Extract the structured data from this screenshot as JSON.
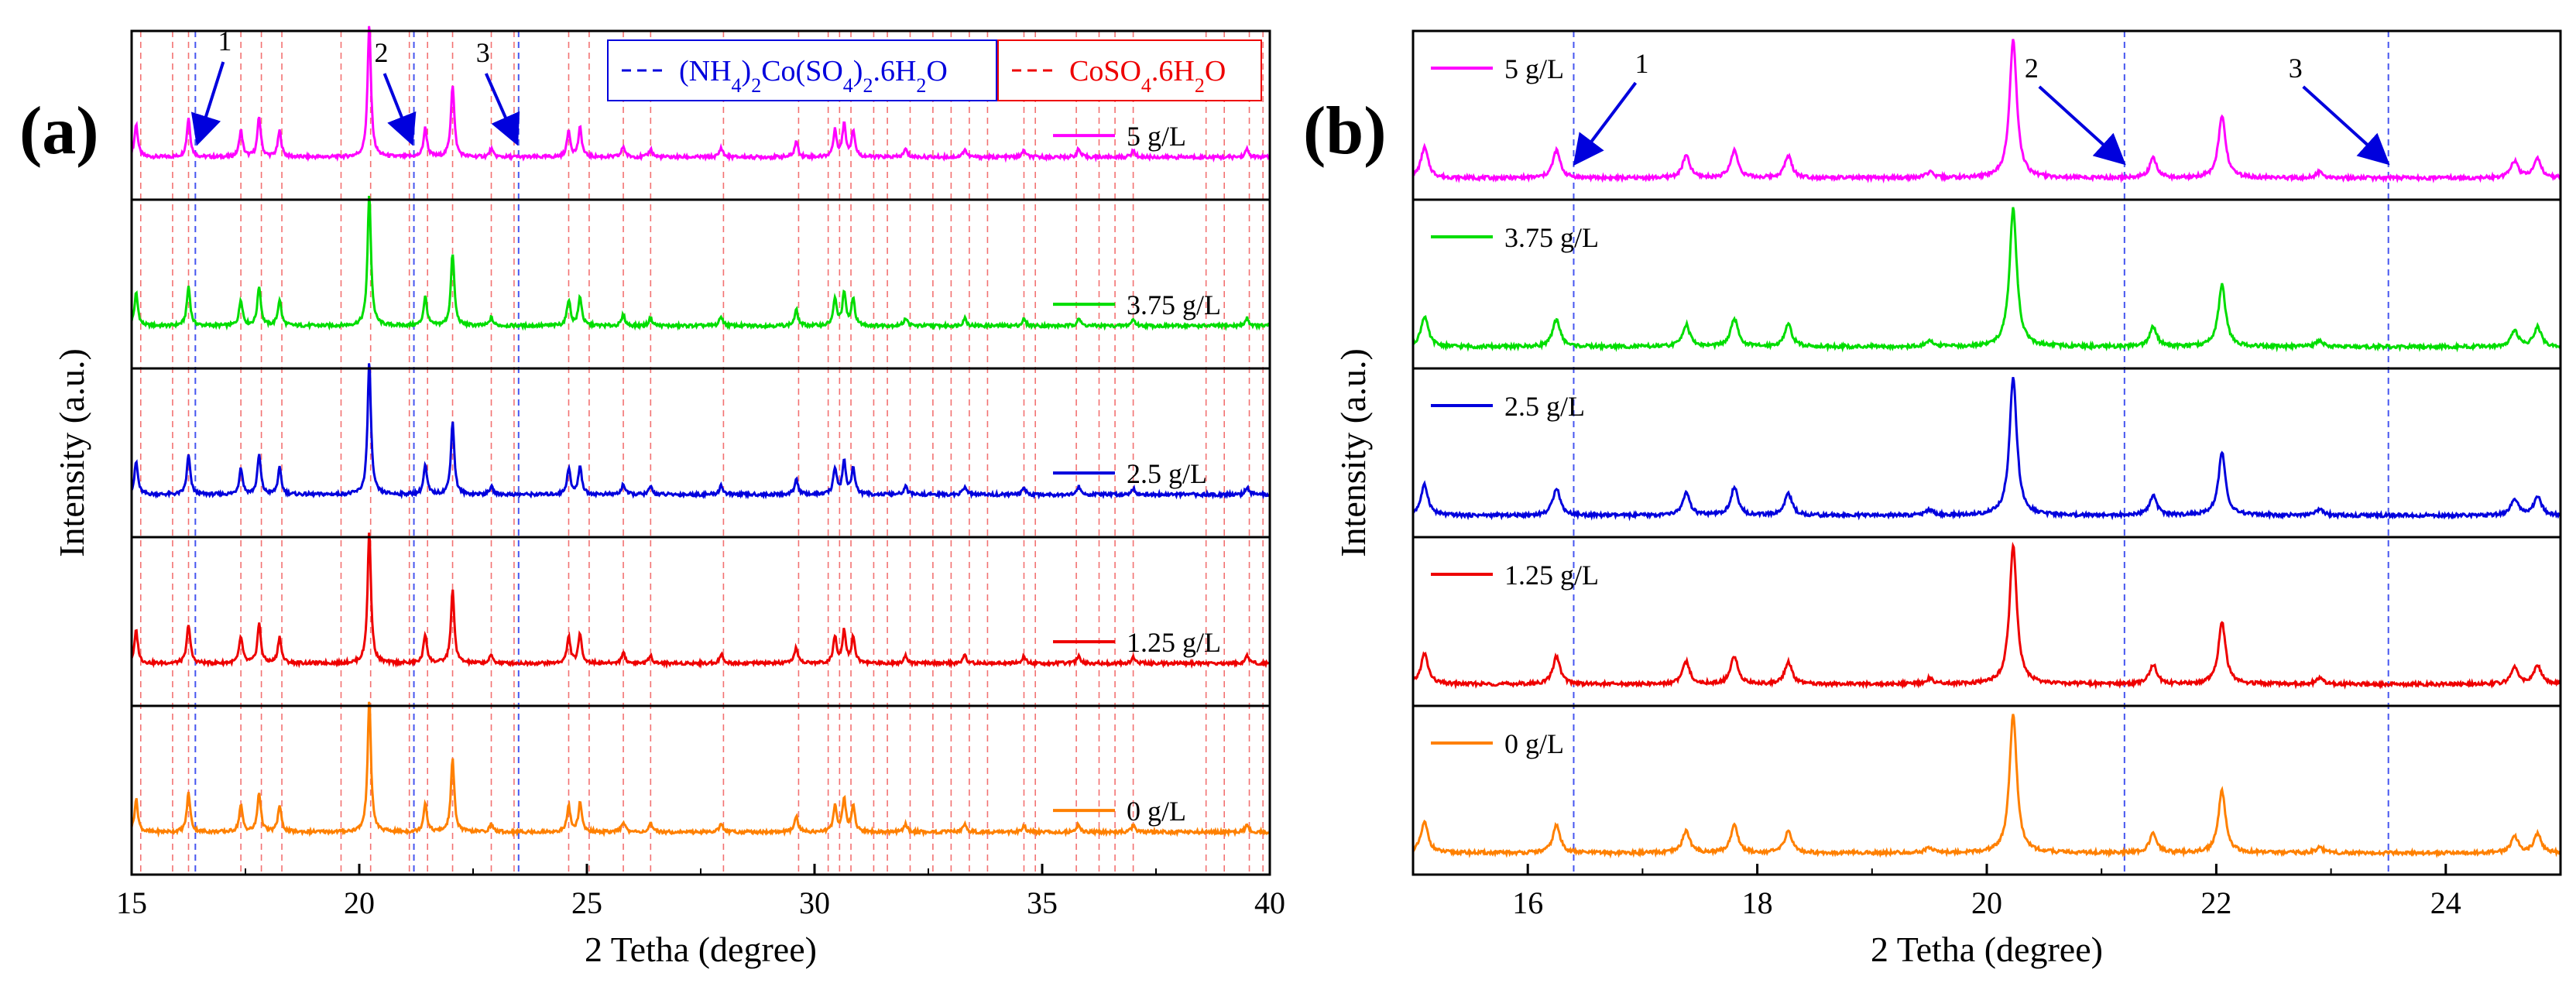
{
  "chart_data": [
    {
      "type": "line",
      "panel_label": "(a)",
      "xlabel": "2 Tetha (degree)",
      "ylabel": "Intensity (a.u.)",
      "xlim": [
        15,
        40
      ],
      "xticks": [
        15,
        20,
        25,
        30,
        35,
        40
      ],
      "stacked": true,
      "series": [
        {
          "name": "5 g/L",
          "color": "#FF00FF"
        },
        {
          "name": "3.75 g/L",
          "color": "#00DD00"
        },
        {
          "name": "2.5 g/L",
          "color": "#0000DD"
        },
        {
          "name": "1.25 g/L",
          "color": "#EE0000"
        },
        {
          "name": "0 g/L",
          "color": "#FF8000"
        }
      ],
      "peaks_2theta": [
        15.1,
        16.25,
        17.4,
        17.8,
        18.25,
        20.22,
        21.45,
        22.05,
        22.9,
        24.6,
        24.85,
        25.8,
        26.4,
        27.95,
        29.6,
        30.45,
        30.65,
        30.85,
        32.0,
        33.3,
        34.6,
        35.8,
        37.0,
        39.5
      ],
      "peak_heights": [
        0.25,
        0.3,
        0.2,
        0.3,
        0.2,
        1.0,
        0.22,
        0.55,
        0.06,
        0.2,
        0.22,
        0.08,
        0.06,
        0.07,
        0.12,
        0.2,
        0.25,
        0.2,
        0.06,
        0.06,
        0.05,
        0.06,
        0.05,
        0.06
      ],
      "reference_legend": [
        {
          "label": "(NH4)2Co(SO4)2.6H2O",
          "color": "#0000DD",
          "style": "dashed"
        },
        {
          "label": "CoSO4.6H2O",
          "color": "#EE0000",
          "style": "dashed"
        }
      ],
      "reference_lines": {
        "(NH4)2Co(SO4)2.6H2O": [
          16.4,
          21.2,
          23.5
        ],
        "CoSO4.6H2O": [
          15.2,
          15.9,
          16.25,
          17.4,
          17.85,
          18.3,
          19.6,
          20.25,
          21.1,
          21.5,
          22.05,
          22.9,
          23.4,
          24.6,
          25.05,
          25.8,
          26.4,
          28.0,
          29.65,
          30.3,
          30.55,
          30.8,
          31.3,
          31.6,
          32.1,
          32.6,
          33.0,
          33.4,
          33.8,
          34.6,
          34.85,
          35.75,
          36.25,
          36.6,
          37.0,
          38.6,
          39.0,
          39.55,
          39.85
        ]
      },
      "annotations": [
        {
          "text": "1",
          "x": 16.4
        },
        {
          "text": "2",
          "x": 21.2
        },
        {
          "text": "3",
          "x": 23.5
        }
      ]
    },
    {
      "type": "line",
      "panel_label": "(b)",
      "xlabel": "2 Tetha (degree)",
      "ylabel": "Intensity (a.u.)",
      "xlim": [
        15,
        25
      ],
      "xticks": [
        16,
        18,
        20,
        22,
        24
      ],
      "stacked": true,
      "series": [
        {
          "name": "5 g/L",
          "color": "#FF00FF"
        },
        {
          "name": "3.75 g/L",
          "color": "#00DD00"
        },
        {
          "name": "2.5 g/L",
          "color": "#0000DD"
        },
        {
          "name": "1.25 g/L",
          "color": "#EE0000"
        },
        {
          "name": "0 g/L",
          "color": "#FF8000"
        }
      ],
      "peaks_2theta": [
        15.1,
        16.25,
        17.38,
        17.8,
        18.27,
        19.5,
        20.23,
        21.45,
        22.05,
        22.9,
        24.6,
        24.8
      ],
      "peak_heights": [
        0.22,
        0.2,
        0.16,
        0.2,
        0.16,
        0.04,
        1.0,
        0.14,
        0.45,
        0.04,
        0.12,
        0.14
      ],
      "reference_lines": {
        "(NH4)2Co(SO4)2.6H2O": [
          16.4,
          21.2,
          23.5
        ]
      },
      "annotations": [
        {
          "text": "1",
          "x": 16.4
        },
        {
          "text": "2",
          "x": 21.2
        },
        {
          "text": "3",
          "x": 23.5
        }
      ]
    }
  ]
}
